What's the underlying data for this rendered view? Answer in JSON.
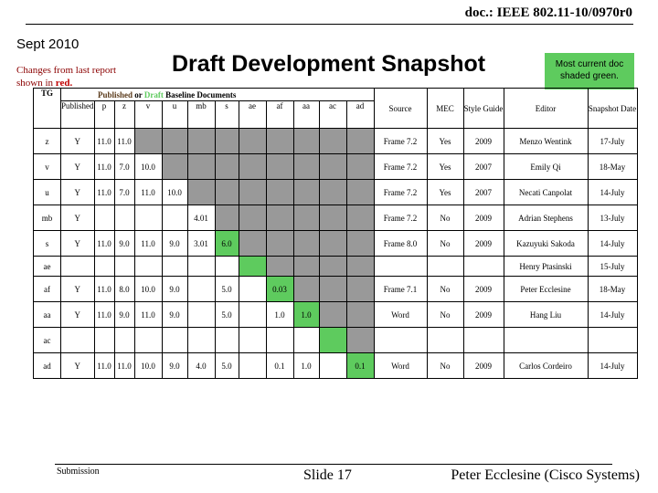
{
  "header": {
    "doc_id": "doc.: IEEE 802.11-10/0970r0",
    "date": "Sept 2010",
    "changes_prefix": "Changes from  last report shown in ",
    "changes_red": "red.",
    "title": "Draft Development Snapshot",
    "note": "Most current doc shaded green."
  },
  "table": {
    "tg_label": "TG",
    "published_label": "Published",
    "or_label": " or ",
    "draft_label": "Draft",
    "baseline_label": " Baseline Documents",
    "sub_headers": [
      "Published",
      "p",
      "z",
      "v",
      "u",
      "mb",
      "s",
      "ae",
      "af",
      "aa",
      "ac",
      "ad"
    ],
    "right_headers": [
      "Source",
      "MEC",
      "Style Guide",
      "Editor",
      "Snapshot Date"
    ],
    "rows": [
      {
        "tg": "z",
        "cells": [
          "Y",
          "11.0",
          "11.0",
          "",
          "",
          "",
          "",
          "",
          "",
          "",
          "",
          ""
        ],
        "shade": [
          "",
          "",
          "",
          "g",
          "g",
          "g",
          "g",
          "g",
          "g",
          "g",
          "g",
          "g"
        ],
        "src": "Frame 7.2",
        "mec": "Yes",
        "style": "2009",
        "editor": "Menzo Wentink",
        "date": "17-July"
      },
      {
        "tg": "v",
        "cells": [
          "Y",
          "11.0",
          "7.0",
          "10.0",
          "",
          "",
          "",
          "",
          "",
          "",
          "",
          ""
        ],
        "shade": [
          "",
          "",
          "",
          "",
          "g",
          "g",
          "g",
          "g",
          "g",
          "g",
          "g",
          "g"
        ],
        "src": "Frame 7.2",
        "mec": "Yes",
        "style": "2007",
        "editor": "Emily Qi",
        "date": "18-May"
      },
      {
        "tg": "u",
        "cells": [
          "Y",
          "11.0",
          "7.0",
          "11.0",
          "10.0",
          "",
          "",
          "",
          "",
          "",
          "",
          ""
        ],
        "shade": [
          "",
          "",
          "",
          "",
          "",
          "g",
          "g",
          "g",
          "g",
          "g",
          "g",
          "g"
        ],
        "src": "Frame 7.2",
        "mec": "Yes",
        "style": "2007",
        "editor": "Necati Canpolat",
        "date": "14-July"
      },
      {
        "tg": "mb",
        "cells": [
          "Y",
          "",
          "",
          "",
          "",
          "4.01",
          "",
          "",
          "",
          "",
          "",
          ""
        ],
        "shade": [
          "",
          "",
          "",
          "",
          "",
          "",
          "g",
          "g",
          "g",
          "g",
          "g",
          "g"
        ],
        "src": "Frame 7.2",
        "mec": "No",
        "style": "2009",
        "editor": "Adrian Stephens",
        "date": "13-July"
      },
      {
        "tg": "s",
        "cells": [
          "Y",
          "11.0",
          "9.0",
          "11.0",
          "9.0",
          "3.01",
          "6.0",
          "",
          "",
          "",
          "",
          ""
        ],
        "shade": [
          "",
          "",
          "",
          "",
          "",
          "",
          "gr",
          "g",
          "g",
          "g",
          "g",
          "g"
        ],
        "src": "Frame 8.0",
        "mec": "No",
        "style": "2009",
        "editor": "Kazuyuki Sakoda",
        "date": "14-July"
      },
      {
        "tg": "ae",
        "cells": [
          "",
          "",
          "",
          "",
          "",
          "",
          "",
          "",
          "",
          "",
          "",
          ""
        ],
        "shade": [
          "",
          "",
          "",
          "",
          "",
          "",
          "",
          "gr",
          "g",
          "g",
          "g",
          "g"
        ],
        "src": "",
        "mec": "",
        "style": "",
        "editor": "Henry  Ptasinski",
        "date": "15-July"
      },
      {
        "tg": "af",
        "cells": [
          "Y",
          "11.0",
          "8.0",
          "10.0",
          "9.0",
          "",
          "5.0",
          "",
          "0.03",
          "",
          "",
          ""
        ],
        "shade": [
          "",
          "",
          "",
          "",
          "",
          "",
          "",
          "",
          "gr",
          "g",
          "g",
          "g"
        ],
        "src": "Frame 7.1",
        "mec": "No",
        "style": "2009",
        "editor": "Peter Ecclesine",
        "date": "18-May"
      },
      {
        "tg": "aa",
        "cells": [
          "Y",
          "11.0",
          "9.0",
          "11.0",
          "9.0",
          "",
          "5.0",
          "",
          "1.0",
          "1.0",
          "",
          ""
        ],
        "shade": [
          "",
          "",
          "",
          "",
          "",
          "",
          "",
          "",
          "",
          "gr",
          "g",
          "g"
        ],
        "src": "Word",
        "mec": "No",
        "style": "2009",
        "editor": "Hang Liu",
        "date": "14-July"
      },
      {
        "tg": "ac",
        "cells": [
          "",
          "",
          "",
          "",
          "",
          "",
          "",
          "",
          "",
          "",
          "",
          ""
        ],
        "shade": [
          "",
          "",
          "",
          "",
          "",
          "",
          "",
          "",
          "",
          "",
          "gr",
          "g"
        ],
        "src": "",
        "mec": "",
        "style": "",
        "editor": "",
        "date": ""
      },
      {
        "tg": "ad",
        "cells": [
          "Y",
          "11.0",
          "11.0",
          "10.0",
          "9.0",
          "4.0",
          "5.0",
          "",
          "0.1",
          "1.0",
          "",
          "0.1"
        ],
        "shade": [
          "",
          "",
          "",
          "",
          "",
          "",
          "",
          "",
          "",
          "",
          "",
          "gr"
        ],
        "src": "Word",
        "mec": "No",
        "style": "2009",
        "editor": "Carlos Cordeiro",
        "date": "14-July"
      }
    ]
  },
  "footer": {
    "submission": "Submission",
    "slide": "Slide 17",
    "author": "Peter Ecclesine (Cisco Systems)"
  },
  "colors": {
    "green": "#5ecb5e",
    "gray": "#999999",
    "red": "#c00000"
  }
}
